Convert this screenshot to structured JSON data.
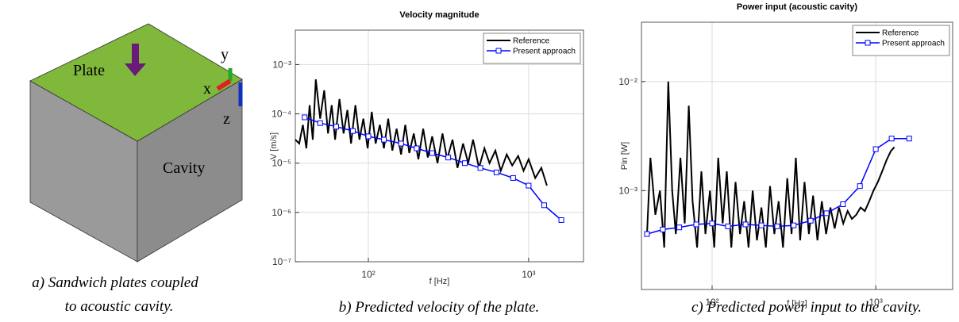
{
  "diagram": {
    "plate": "Plate",
    "cavity": "Cavity",
    "x": "x",
    "y": "y",
    "z": "z"
  },
  "captions": [
    [
      "a) Sandwich plates coupled",
      "to acoustic cavity."
    ],
    [
      "b) Predicted velocity of the plate."
    ],
    [
      "c) Predicted power input to the cavity."
    ]
  ],
  "chart_data": [
    {
      "type": "line",
      "title": "Velocity magnitude",
      "xlabel": "f [Hz]",
      "ylabel": "V [m/s]",
      "xscale": "log",
      "yscale": "log",
      "grid": true,
      "legend": "upper right",
      "xlim": [
        35,
        2200
      ],
      "ylim": [
        1e-07,
        0.005
      ],
      "xticks": [
        {
          "value": 100,
          "label": "10²"
        },
        {
          "value": 1000,
          "label": "10³"
        }
      ],
      "yticks": [
        {
          "value": 1e-07,
          "label": "10⁻⁷"
        },
        {
          "value": 1e-06,
          "label": "10⁻⁶"
        },
        {
          "value": 1e-05,
          "label": "10⁻⁵"
        },
        {
          "value": 0.0001,
          "label": "10⁻⁴"
        },
        {
          "value": 0.001,
          "label": "10⁻³"
        }
      ],
      "series": [
        {
          "name": "Reference",
          "color": "#000000",
          "x": [
            35,
            37,
            39,
            41,
            43,
            45,
            47,
            50,
            53,
            56,
            59,
            62,
            66,
            70,
            74,
            78,
            83,
            88,
            93,
            99,
            105,
            111,
            118,
            125,
            133,
            141,
            150,
            160,
            170,
            180,
            192,
            205,
            220,
            235,
            250,
            270,
            290,
            310,
            335,
            360,
            390,
            420,
            450,
            490,
            530,
            570,
            620,
            670,
            730,
            790,
            860,
            930,
            1000,
            1100,
            1200,
            1300
          ],
          "values": [
            3e-05,
            2.5e-05,
            6e-05,
            2e-05,
            0.00015,
            3e-05,
            0.0005,
            8e-05,
            0.0003,
            4e-05,
            0.00015,
            3e-05,
            0.0002,
            4e-05,
            0.00012,
            2.5e-05,
            0.00015,
            3e-05,
            8e-05,
            2e-05,
            0.00011,
            2.5e-05,
            6e-05,
            2e-05,
            8e-05,
            1.8e-05,
            5e-05,
            1.5e-05,
            6e-05,
            1.6e-05,
            4e-05,
            1.2e-05,
            5e-05,
            1.3e-05,
            3.5e-05,
            1e-05,
            4e-05,
            1.2e-05,
            3e-05,
            8e-06,
            2.5e-05,
            1e-05,
            3e-05,
            8e-06,
            2e-05,
            1e-05,
            1.8e-05,
            7e-06,
            1.5e-05,
            9e-06,
            1.4e-05,
            7e-06,
            1.2e-05,
            5e-06,
            8e-06,
            3.5e-06
          ]
        },
        {
          "name": "Present approach",
          "color": "#0000ff",
          "marker": "square",
          "x": [
            40,
            50,
            63,
            80,
            100,
            125,
            160,
            200,
            250,
            315,
            400,
            500,
            630,
            800,
            1000,
            1250,
            1600
          ],
          "values": [
            8.5e-05,
            6.5e-05,
            5.5e-05,
            4.5e-05,
            3.5e-05,
            3e-05,
            2.5e-05,
            2e-05,
            1.6e-05,
            1.3e-05,
            1e-05,
            8e-06,
            6.5e-06,
            5e-06,
            3.5e-06,
            1.4e-06,
            7e-07
          ]
        }
      ]
    },
    {
      "type": "line",
      "title": "Power input (acoustic cavity)",
      "xlabel": "f [Hz]",
      "ylabel": "Pin [W]",
      "xscale": "log",
      "yscale": "log",
      "grid": true,
      "legend": "upper right",
      "xlim": [
        37,
        2950
      ],
      "ylim": [
        0.000124,
        0.035
      ],
      "xticks": [
        {
          "value": 100,
          "label": "10²"
        },
        {
          "value": 1000,
          "label": "10³"
        }
      ],
      "yticks": [
        {
          "value": 0.001,
          "label": "10⁻³"
        },
        {
          "value": 0.01,
          "label": "10⁻²"
        }
      ],
      "series": [
        {
          "name": "Reference",
          "color": "#000000",
          "x": [
            40,
            42,
            45,
            48,
            51,
            54,
            57,
            60,
            64,
            68,
            72,
            76,
            81,
            86,
            91,
            97,
            103,
            109,
            116,
            123,
            131,
            139,
            148,
            157,
            167,
            177,
            188,
            200,
            213,
            226,
            240,
            255,
            271,
            288,
            306,
            325,
            345,
            367,
            390,
            414,
            440,
            468,
            497,
            528,
            561,
            596,
            633,
            673,
            715,
            760,
            807,
            858,
            912,
            969,
            1030,
            1094,
            1163,
            1236,
            1300
          ],
          "values": [
            0.0004,
            0.002,
            0.0006,
            0.001,
            0.0003,
            0.01,
            0.001,
            0.0004,
            0.002,
            0.0005,
            0.006,
            0.0008,
            0.0003,
            0.0015,
            0.0004,
            0.001,
            0.0003,
            0.002,
            0.0005,
            0.0015,
            0.0003,
            0.0012,
            0.0004,
            0.0008,
            0.0003,
            0.001,
            0.00035,
            0.0007,
            0.0003,
            0.0011,
            0.0004,
            0.0008,
            0.0003,
            0.0013,
            0.0004,
            0.002,
            0.00035,
            0.0012,
            0.0004,
            0.0009,
            0.00035,
            0.0008,
            0.0004,
            0.0007,
            0.00045,
            0.0007,
            0.0005,
            0.00065,
            0.00055,
            0.0006,
            0.0007,
            0.00065,
            0.0008,
            0.001,
            0.0012,
            0.0015,
            0.0019,
            0.0023,
            0.0025
          ]
        },
        {
          "name": "Present approach",
          "color": "#0000ff",
          "marker": "square",
          "x": [
            40,
            50,
            63,
            80,
            100,
            125,
            160,
            200,
            250,
            315,
            400,
            500,
            630,
            800,
            1000,
            1250,
            1600
          ],
          "values": [
            0.0004,
            0.00044,
            0.00046,
            0.00049,
            0.0005,
            0.00047,
            0.00049,
            0.00048,
            0.00047,
            0.00048,
            0.00053,
            0.00062,
            0.00075,
            0.0011,
            0.0024,
            0.003,
            0.003
          ]
        }
      ]
    }
  ]
}
